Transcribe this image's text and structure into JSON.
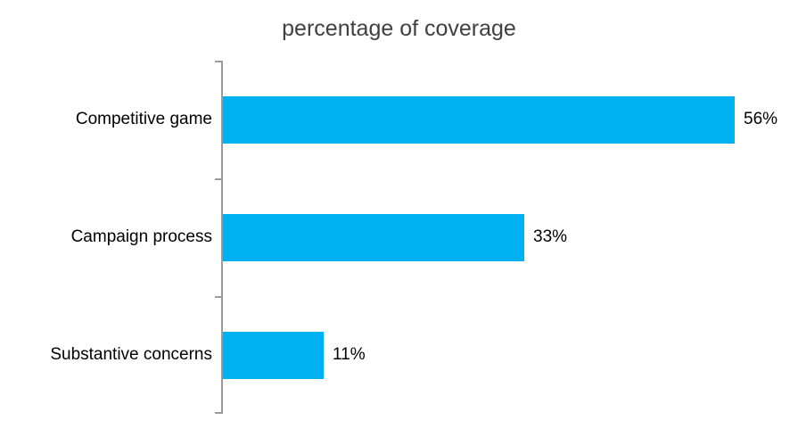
{
  "chart_data": {
    "type": "bar",
    "orientation": "horizontal",
    "title": "percentage of coverage",
    "categories": [
      "Competitive game",
      "Campaign process",
      "Substantive concerns"
    ],
    "values": [
      56,
      33,
      11
    ],
    "value_labels": [
      "56%",
      "33%",
      "11%"
    ],
    "xlabel": "",
    "ylabel": "",
    "xlim": [
      0,
      56
    ],
    "grid": false,
    "legend": false,
    "x_axis_labels_visible": false,
    "bar_color": "#00B0F0",
    "axis_color": "#9b9b9b",
    "title_color": "#404040",
    "label_color": "#000000"
  }
}
